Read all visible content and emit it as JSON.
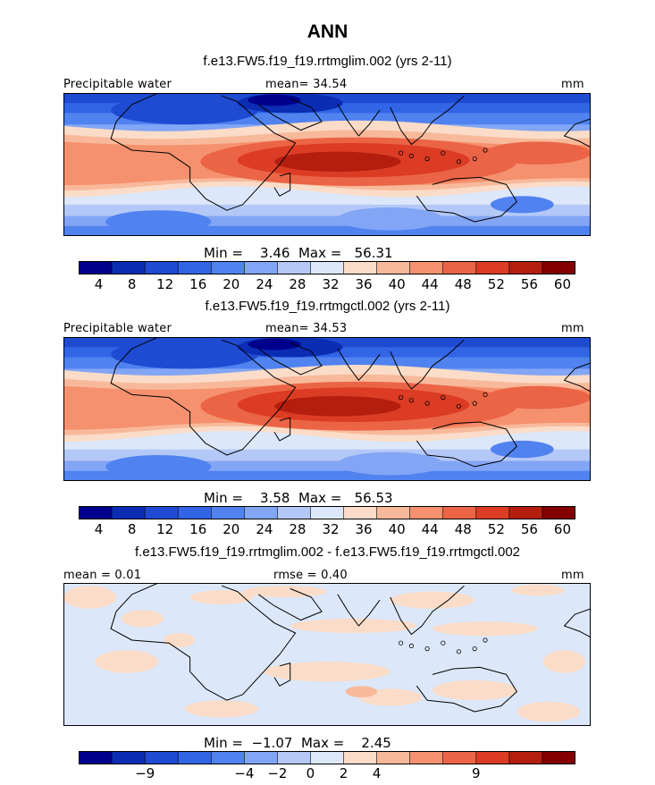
{
  "header": {
    "season": "ANN",
    "panel1_title": "f.e13.FW5.f19_f19.rrtmglim.002 (yrs 2-11)",
    "panel2_title": "f.e13.FW5.f19_f19.rrtmgctl.002 (yrs 2-11)",
    "panel3_title": "f.e13.FW5.f19_f19.rrtmglim.002 - f.e13.FW5.f19_f19.rrtmgctl.002"
  },
  "chart_data": [
    {
      "type": "heatmap",
      "variable_label": "Precipitable water",
      "units": "mm",
      "mean_text": "mean=  34.54",
      "stats_text": "Min =    3.46  Max =   56.31",
      "min": 3.46,
      "max": 56.31,
      "mean": 34.54,
      "levels": [
        "4",
        "8",
        "12",
        "16",
        "20",
        "24",
        "28",
        "32",
        "36",
        "40",
        "44",
        "48",
        "52",
        "56",
        "60"
      ],
      "colors": [
        "#00008c",
        "#0a2db4",
        "#1e4bd2",
        "#3264e6",
        "#5082f0",
        "#82a5f5",
        "#b4c8f8",
        "#dce8fa",
        "#fadcc8",
        "#f8b99b",
        "#f5916e",
        "#eb6446",
        "#dc3c23",
        "#b41e0f",
        "#820000"
      ]
    },
    {
      "type": "heatmap",
      "variable_label": "Precipitable water",
      "units": "mm",
      "mean_text": "mean=  34.53",
      "stats_text": "Min =    3.58  Max =   56.53",
      "min": 3.58,
      "max": 56.53,
      "mean": 34.53,
      "levels": [
        "4",
        "8",
        "12",
        "16",
        "20",
        "24",
        "28",
        "32",
        "36",
        "40",
        "44",
        "48",
        "52",
        "56",
        "60"
      ],
      "colors": [
        "#00008c",
        "#0a2db4",
        "#1e4bd2",
        "#3264e6",
        "#5082f0",
        "#82a5f5",
        "#b4c8f8",
        "#dce8fa",
        "#fadcc8",
        "#f8b99b",
        "#f5916e",
        "#eb6446",
        "#dc3c23",
        "#b41e0f",
        "#820000"
      ]
    },
    {
      "type": "heatmap",
      "units": "mm",
      "mean_text": "mean =    0.01",
      "rmse_text": "rmse =    0.40",
      "stats_text": "Min =  −1.07  Max =    2.45",
      "min": -1.07,
      "max": 2.45,
      "mean": 0.01,
      "rmse": 0.4,
      "levels": [
        "−9",
        "−4",
        "−2",
        "0",
        "2",
        "4",
        "9"
      ],
      "colors": [
        "#00008c",
        "#0a2db4",
        "#1e4bd2",
        "#3264e6",
        "#5082f0",
        "#82a5f5",
        "#b4c8f8",
        "#dce8fa",
        "#fadcc8",
        "#f8b99b",
        "#f5916e",
        "#eb6446",
        "#dc3c23",
        "#b41e0f",
        "#820000"
      ]
    }
  ]
}
